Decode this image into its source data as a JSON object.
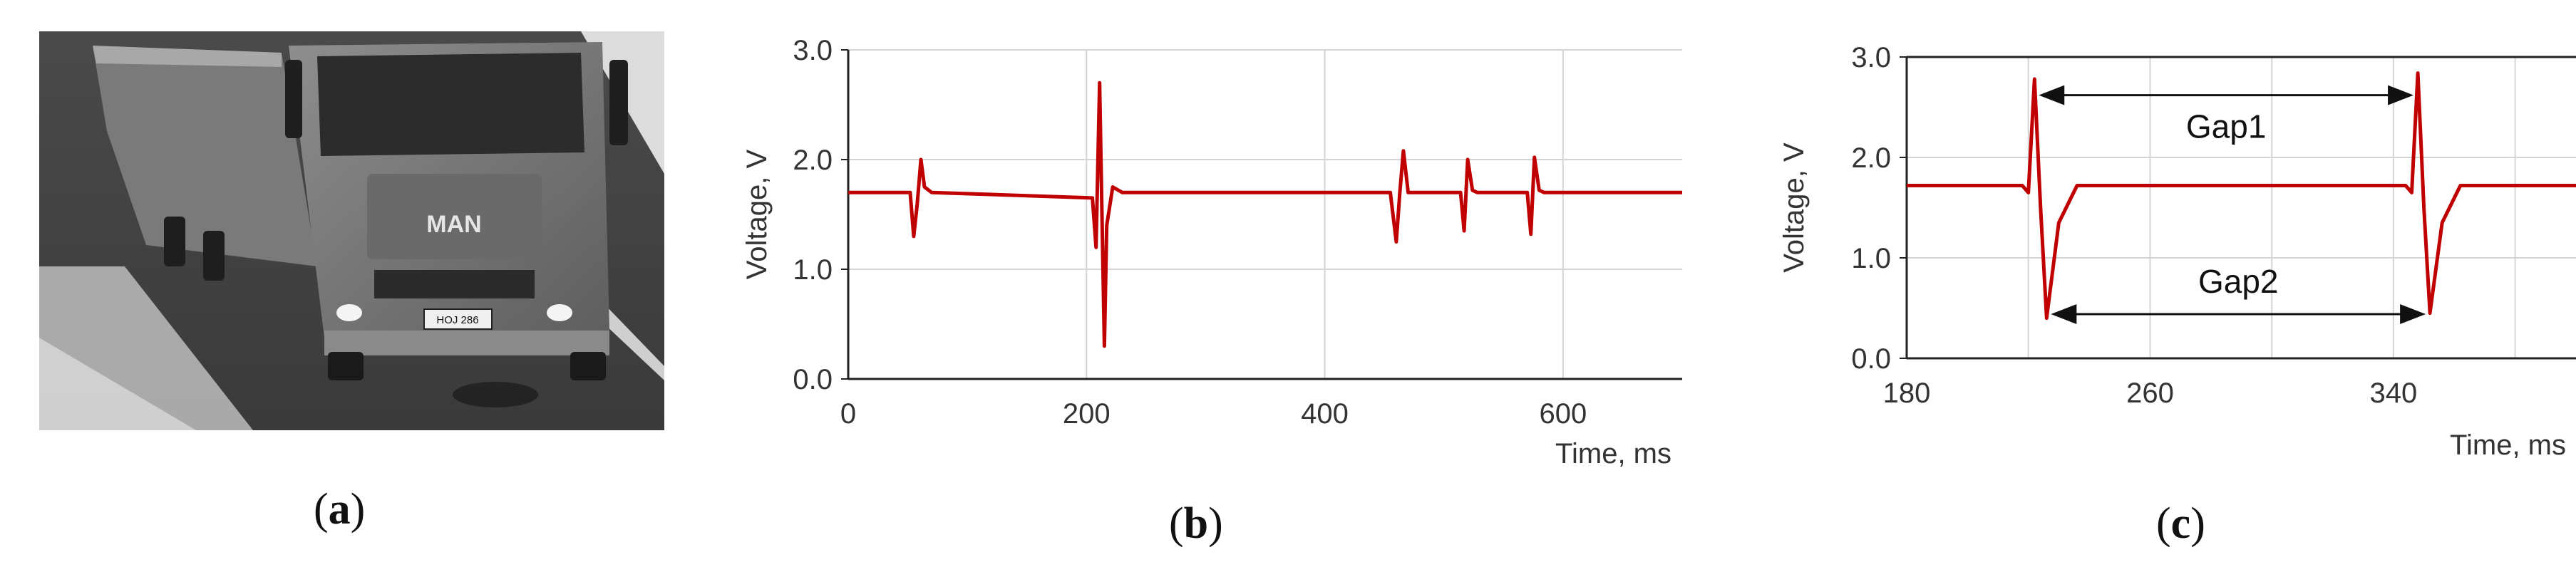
{
  "panels": {
    "a": {
      "caption": "a"
    },
    "b": {
      "caption": "b"
    },
    "c": {
      "caption": "c"
    }
  },
  "photo": {
    "plate_text": "HOJ 286",
    "brand_text": "MAN"
  },
  "colors": {
    "signal": "#c00000",
    "grid": "#d4d4d4",
    "axis": "#222222",
    "label": "#333333"
  },
  "chart_data": [
    {
      "id": "b",
      "type": "line",
      "xlabel": "Time, ms",
      "ylabel": "Voltage, V",
      "xlim": [
        0,
        700
      ],
      "ylim": [
        0,
        3.0
      ],
      "xticks": [
        0,
        200,
        400,
        600
      ],
      "yticks": [
        0.0,
        1.0,
        2.0,
        3.0
      ],
      "xtick_labels": [
        "0",
        "200",
        "400",
        "600"
      ],
      "ytick_labels": [
        "0.0",
        "1.0",
        "2.0",
        "3.0"
      ],
      "grid": true,
      "baseline": 1.7,
      "series": [
        {
          "x": [
            0,
            52,
            55,
            58,
            61,
            64,
            70,
            205,
            208,
            211,
            213,
            215,
            217,
            222,
            230,
            455,
            460,
            463,
            466,
            470,
            514,
            517,
            520,
            524,
            528,
            570,
            573,
            576,
            580,
            584,
            700
          ],
          "y": [
            1.7,
            1.7,
            1.3,
            1.6,
            2.0,
            1.75,
            1.7,
            1.65,
            1.2,
            2.7,
            1.5,
            0.3,
            1.4,
            1.75,
            1.7,
            1.7,
            1.25,
            1.7,
            2.08,
            1.7,
            1.7,
            1.35,
            2.0,
            1.72,
            1.7,
            1.7,
            1.32,
            2.02,
            1.72,
            1.7,
            1.7
          ]
        }
      ]
    },
    {
      "id": "c",
      "type": "line",
      "xlabel": "Time, ms",
      "ylabel": "Voltage, V",
      "xlim": [
        180,
        400
      ],
      "ylim": [
        0,
        3.0
      ],
      "xticks": [
        180,
        260,
        340
      ],
      "yticks": [
        0.0,
        1.0,
        2.0,
        3.0
      ],
      "xtick_labels": [
        "180",
        "260",
        "340"
      ],
      "ytick_labels": [
        "0.0",
        "1.0",
        "2.0",
        "3.0"
      ],
      "grid": true,
      "series": [
        {
          "x": [
            180,
            218,
            220,
            222,
            224,
            226,
            230,
            236,
            344,
            346,
            348,
            350,
            352,
            356,
            362,
            400
          ],
          "y": [
            1.72,
            1.72,
            1.65,
            2.78,
            1.5,
            0.4,
            1.35,
            1.72,
            1.72,
            1.65,
            2.84,
            1.5,
            0.45,
            1.35,
            1.72,
            1.72
          ]
        }
      ],
      "annotations": [
        {
          "label": "Gap1",
          "x_start": 222,
          "x_end": 348,
          "y": 2.62
        },
        {
          "label": "Gap2",
          "x_start": 226,
          "x_end": 352,
          "y": 0.44
        }
      ]
    }
  ]
}
